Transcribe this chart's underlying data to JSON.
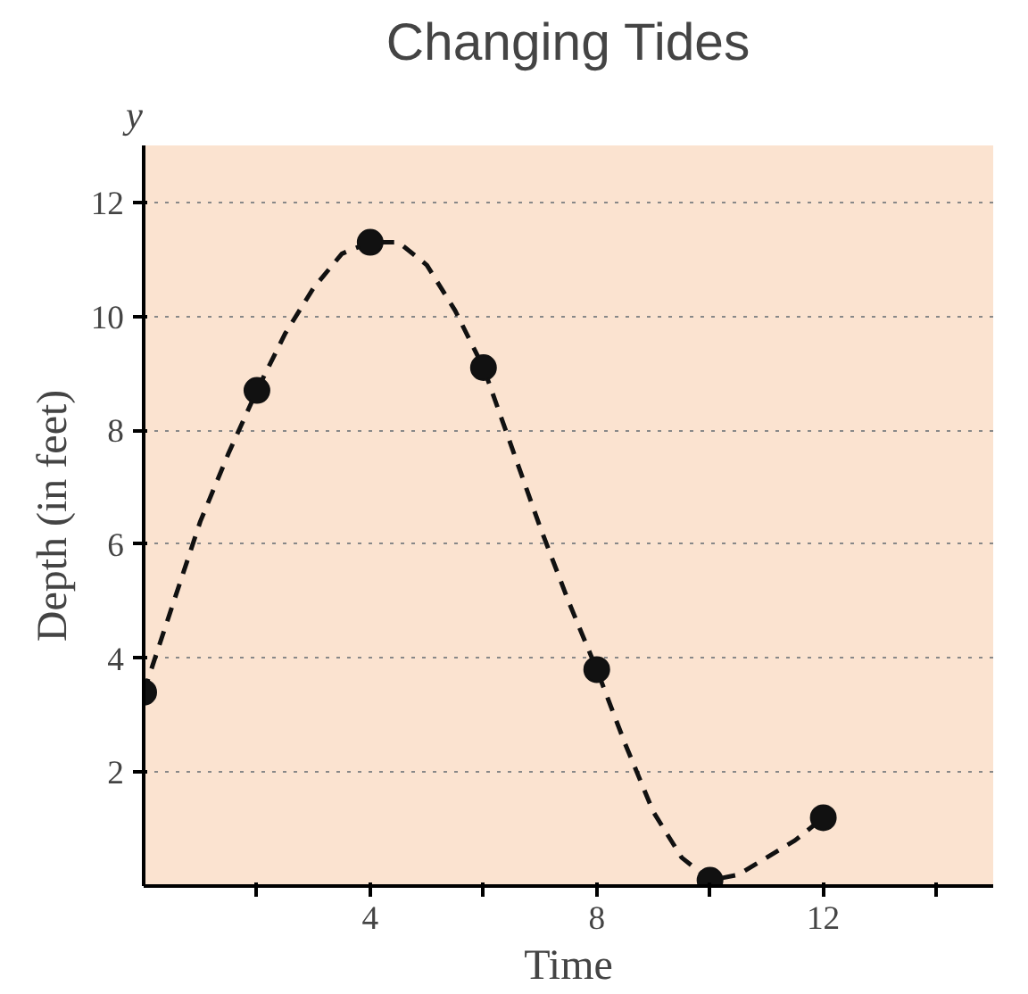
{
  "chart_data": {
    "type": "line",
    "title": "Changing Tides",
    "xlabel": "Time",
    "ylabel": "Depth (in feet)",
    "annotations": [
      "y"
    ],
    "x": [
      0,
      2,
      4,
      6,
      8,
      10,
      12
    ],
    "series": [
      {
        "color": "#111111",
        "line_style": "dashed",
        "x": [
          0,
          0.5,
          1,
          1.5,
          2,
          2.5,
          3,
          3.5,
          4,
          4.5,
          5,
          5.5,
          6,
          6.5,
          7,
          7.5,
          8,
          8.5,
          9,
          9.5,
          10,
          10.5,
          11,
          11.5,
          12
        ],
        "values": [
          3.4,
          4.9,
          6.4,
          7.6,
          8.7,
          9.7,
          10.5,
          11.1,
          11.3,
          11.3,
          10.9,
          10.1,
          9.1,
          7.7,
          6.3,
          5.0,
          3.8,
          2.5,
          1.3,
          0.5,
          0.1,
          0.2,
          0.5,
          0.8,
          1.2
        ]
      },
      {
        "type": "scatter",
        "marker": "circle",
        "color": "#111111",
        "values": [
          3.4,
          8.7,
          11.3,
          9.1,
          3.8,
          0.1,
          1.2
        ]
      }
    ],
    "xlim": [
      0,
      15
    ],
    "ylim": [
      0,
      13
    ],
    "xticks": [
      {
        "value": 2,
        "label": null
      },
      4,
      {
        "value": 6,
        "label": null
      },
      8,
      {
        "value": 10,
        "label": null
      },
      12,
      {
        "value": 14,
        "label": null
      }
    ],
    "yticks": [
      2,
      4,
      6,
      8,
      10,
      12
    ],
    "grid": "y"
  }
}
